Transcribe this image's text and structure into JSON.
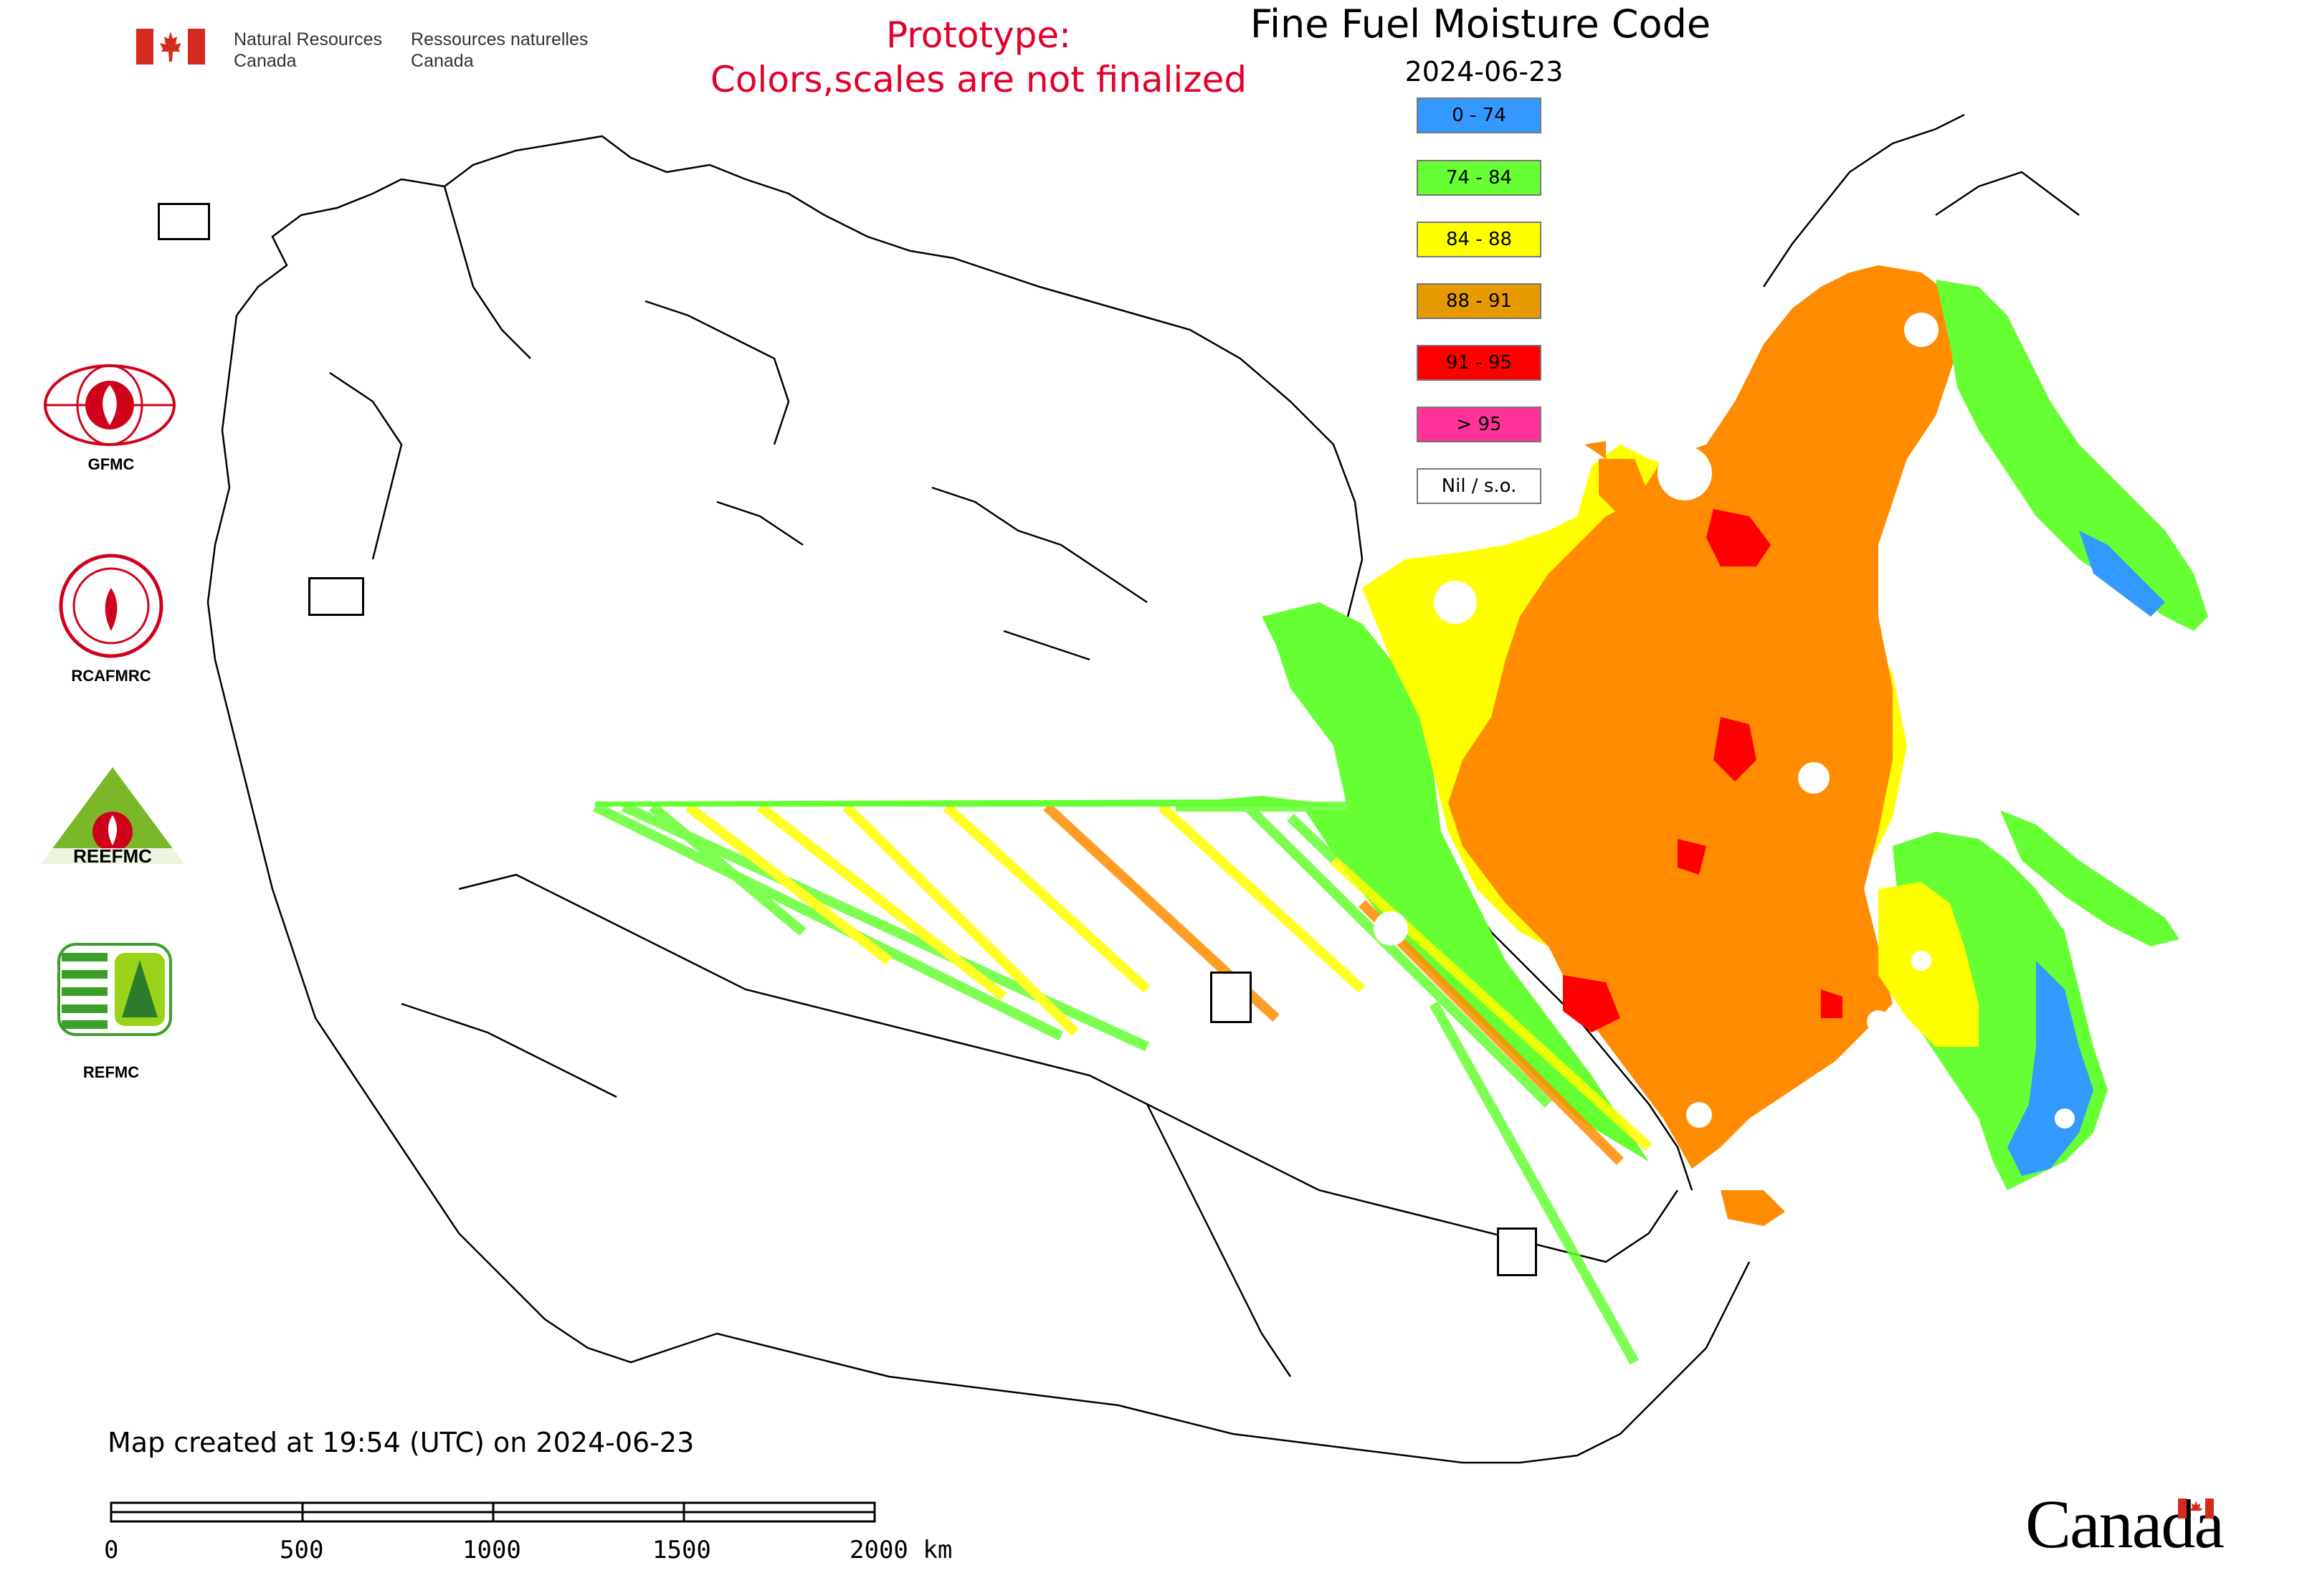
{
  "header": {
    "org_en_line1": "Natural Resources",
    "org_en_line2": "Canada",
    "org_fr_line1": "Ressources naturelles",
    "org_fr_line2": "Canada"
  },
  "prototype_notice": {
    "line1": "Prototype:",
    "line2": "Colors,scales are not finalized"
  },
  "map": {
    "title": "Fine Fuel Moisture Code",
    "date": "2024-06-23",
    "created_text": "Map created at 19:54 (UTC) on 2024-06-23"
  },
  "legend": [
    {
      "label": "0 - 74",
      "color": "#3399ff"
    },
    {
      "label": "74 - 84",
      "color": "#66ff33"
    },
    {
      "label": "84 - 88",
      "color": "#ffff00"
    },
    {
      "label": "88 - 91",
      "color": "#e69900"
    },
    {
      "label": "91 - 95",
      "color": "#ff0000"
    },
    {
      "label": "> 95",
      "color": "#ff3399"
    },
    {
      "label": "Nil / s.o.",
      "color": "#ffffff"
    }
  ],
  "side_logos": [
    {
      "label": "GFMC"
    },
    {
      "label": "RCAFMRC"
    },
    {
      "label": "REEFMC"
    },
    {
      "label": "REFMC"
    }
  ],
  "scale_bar": {
    "labels": [
      "0",
      "500",
      "1000",
      "1500",
      "2000 km"
    ]
  },
  "footer": {
    "wordmark": "Canada"
  },
  "colors": {
    "accent_red": "#e4002b",
    "class_orange": "#ff8c00"
  },
  "icons": [
    "canada-flag-icon",
    "gfmc-logo-icon",
    "rcafmrc-logo-icon",
    "reefmc-logo-icon",
    "refmc-logo-icon"
  ]
}
